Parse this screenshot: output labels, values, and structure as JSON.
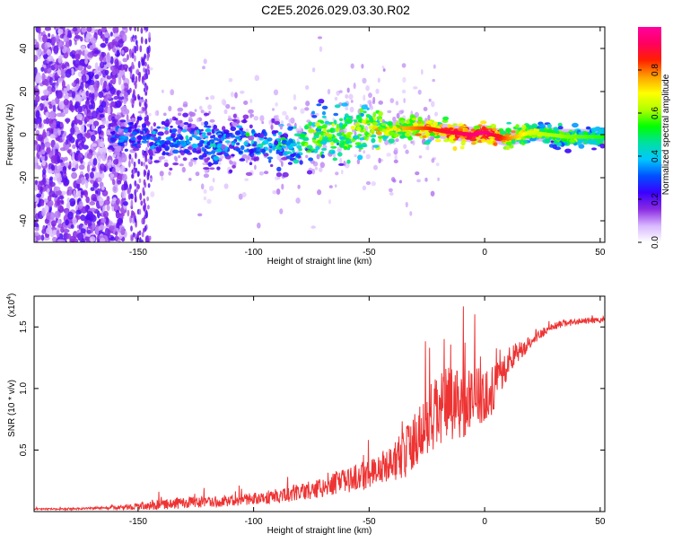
{
  "title": "C2E5.2026.029.03.30.R02",
  "chart_data": [
    {
      "type": "heatmap",
      "xlabel": "Height of straight line (km)",
      "ylabel": "Frequency (Hz)",
      "xlim": [
        -195,
        52
      ],
      "ylim": [
        -50,
        50
      ],
      "xticks": [
        -150,
        -100,
        -50,
        0,
        50
      ],
      "yticks": [
        -40,
        -20,
        0,
        20,
        40
      ],
      "colorbar": {
        "label": "Normalized spectral amplitude",
        "range": [
          0,
          1
        ],
        "ticks": [
          0.0,
          0.2,
          0.4,
          0.6,
          0.8
        ],
        "colors": [
          "#ffffff",
          "#d8b8ff",
          "#8a2be2",
          "#3a00ff",
          "#0050ff",
          "#00c8ff",
          "#00e0a0",
          "#00ff00",
          "#b0ff00",
          "#ffff00",
          "#ffa000",
          "#ff2000",
          "#ff0060",
          "#ff00a0"
        ]
      },
      "ridge": {
        "x": [
          -160,
          -150,
          -140,
          -120,
          -100,
          -85,
          -75,
          -60,
          -50,
          -45,
          -35,
          -25,
          -15,
          -5,
          0,
          10,
          20,
          35,
          52
        ],
        "y": [
          0,
          -1,
          -2,
          -3,
          -4,
          -5,
          -1,
          1,
          4,
          2,
          3,
          3,
          1,
          0,
          1,
          -2,
          1,
          -1,
          -1
        ],
        "amplitude": [
          0.25,
          0.3,
          0.32,
          0.35,
          0.35,
          0.4,
          0.55,
          0.6,
          0.62,
          0.65,
          0.7,
          0.78,
          0.85,
          0.9,
          0.92,
          0.75,
          0.6,
          0.55,
          0.5
        ]
      }
    },
    {
      "type": "line",
      "xlabel": "Height of straight line (km)",
      "ylabel": "SNR (10 * v/v)",
      "multiplier_label": "(x10",
      "multiplier_exp": "4",
      "xlim": [
        -195,
        52
      ],
      "ylim": [
        0,
        1.75
      ],
      "xticks": [
        -150,
        -100,
        -50,
        0,
        50
      ],
      "yticks": [
        0.5,
        1.0,
        1.5
      ],
      "series": [
        {
          "name": "SNR",
          "color": "#ee3333",
          "x": [
            -195,
            -180,
            -165,
            -160,
            -150,
            -140,
            -130,
            -120,
            -110,
            -100,
            -90,
            -80,
            -70,
            -60,
            -50,
            -40,
            -35,
            -30,
            -25,
            -20,
            -15,
            -10,
            -5,
            0,
            5,
            10,
            15,
            20,
            25,
            30,
            35,
            40,
            45,
            50,
            52
          ],
          "y": [
            0.02,
            0.02,
            0.03,
            0.03,
            0.04,
            0.05,
            0.07,
            0.07,
            0.08,
            0.1,
            0.12,
            0.15,
            0.19,
            0.24,
            0.3,
            0.38,
            0.45,
            0.55,
            0.65,
            0.78,
            0.85,
            0.82,
            0.95,
            0.9,
            1.0,
            1.2,
            1.3,
            1.38,
            1.45,
            1.5,
            1.53,
            1.54,
            1.55,
            1.55,
            1.55
          ],
          "noise": [
            0.005,
            0.008,
            0.01,
            0.015,
            0.03,
            0.04,
            0.05,
            0.04,
            0.04,
            0.05,
            0.06,
            0.07,
            0.08,
            0.1,
            0.12,
            0.15,
            0.2,
            0.25,
            0.3,
            0.32,
            0.3,
            0.28,
            0.25,
            0.22,
            0.18,
            0.12,
            0.08,
            0.05,
            0.04,
            0.03,
            0.03,
            0.025,
            0.025,
            0.025,
            0.025
          ]
        }
      ]
    }
  ]
}
